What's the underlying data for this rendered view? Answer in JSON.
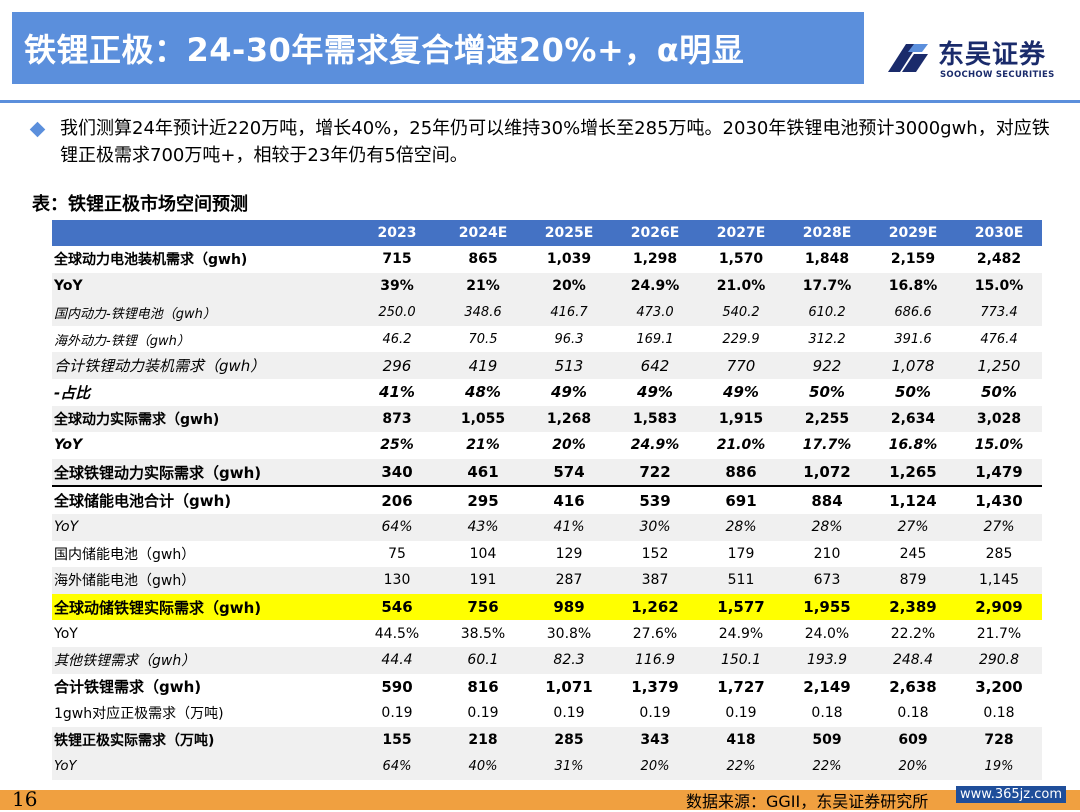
{
  "header": {
    "title": "铁锂正极：24-30年需求复合增速20%+，α明显",
    "logo_cn": "东吴证券",
    "logo_en": "SOOCHOW SECURITIES"
  },
  "bullet": {
    "text": "我们测算24年预计近220万吨，增长40%，25年仍可以维持30%增长至285万吨。2030年铁锂电池预计3000gwh，对应铁锂正极需求700万吨+，相较于23年仍有5倍空间。"
  },
  "table": {
    "caption": "表：铁锂正极市场空间预测",
    "headers": [
      "",
      "2023",
      "2024E",
      "2025E",
      "2026E",
      "2027E",
      "2028E",
      "2029E",
      "2030E"
    ],
    "rows": [
      {
        "label": "全球动力电池装机需求（gwh)",
        "values": [
          "715",
          "865",
          "1,039",
          "1,298",
          "1,570",
          "1,848",
          "2,159",
          "2,482"
        ]
      },
      {
        "label": "YoY",
        "values": [
          "39%",
          "21%",
          "20%",
          "24.9%",
          "21.0%",
          "17.7%",
          "16.8%",
          "15.0%"
        ]
      },
      {
        "label": "国内动力-铁锂电池（gwh）",
        "values": [
          "250.0",
          "348.6",
          "416.7",
          "473.0",
          "540.2",
          "610.2",
          "686.6",
          "773.4"
        ]
      },
      {
        "label": "海外动力-铁锂（gwh）",
        "values": [
          "46.2",
          "70.5",
          "96.3",
          "169.1",
          "229.9",
          "312.2",
          "391.6",
          "476.4"
        ]
      },
      {
        "label": "合计铁锂动力装机需求（gwh）",
        "values": [
          "296",
          "419",
          "513",
          "642",
          "770",
          "922",
          "1,078",
          "1,250"
        ]
      },
      {
        "label": "-占比",
        "values": [
          "41%",
          "48%",
          "49%",
          "49%",
          "49%",
          "50%",
          "50%",
          "50%"
        ]
      },
      {
        "label": "全球动力实际需求（gwh)",
        "values": [
          "873",
          "1,055",
          "1,268",
          "1,583",
          "1,915",
          "2,255",
          "2,634",
          "3,028"
        ]
      },
      {
        "label": "YoY",
        "values": [
          "25%",
          "21%",
          "20%",
          "24.9%",
          "21.0%",
          "17.7%",
          "16.8%",
          "15.0%"
        ]
      },
      {
        "label": "全球铁锂动力实际需求（gwh)",
        "values": [
          "340",
          "461",
          "574",
          "722",
          "886",
          "1,072",
          "1,265",
          "1,479"
        ]
      },
      {
        "label": "全球储能电池合计（gwh)",
        "values": [
          "206",
          "295",
          "416",
          "539",
          "691",
          "884",
          "1,124",
          "1,430"
        ]
      },
      {
        "label": "YoY",
        "values": [
          "64%",
          "43%",
          "41%",
          "30%",
          "28%",
          "28%",
          "27%",
          "27%"
        ]
      },
      {
        "label": "国内储能电池（gwh）",
        "values": [
          "75",
          "104",
          "129",
          "152",
          "179",
          "210",
          "245",
          "285"
        ]
      },
      {
        "label": "海外储能电池（gwh）",
        "values": [
          "130",
          "191",
          "287",
          "387",
          "511",
          "673",
          "879",
          "1,145"
        ]
      },
      {
        "label": "全球动储铁锂实际需求（gwh)",
        "values": [
          "546",
          "756",
          "989",
          "1,262",
          "1,577",
          "1,955",
          "2,389",
          "2,909"
        ]
      },
      {
        "label": "YoY",
        "values": [
          "44.5%",
          "38.5%",
          "30.8%",
          "27.6%",
          "24.9%",
          "24.0%",
          "22.2%",
          "21.7%"
        ]
      },
      {
        "label": "其他铁锂需求（gwh）",
        "values": [
          "44.4",
          "60.1",
          "82.3",
          "116.9",
          "150.1",
          "193.9",
          "248.4",
          "290.8"
        ]
      },
      {
        "label": "合计铁锂需求（gwh)",
        "values": [
          "590",
          "816",
          "1,071",
          "1,379",
          "1,727",
          "2,149",
          "2,638",
          "3,200"
        ]
      },
      {
        "label": "1gwh对应正极需求（万吨)",
        "values": [
          "0.19",
          "0.19",
          "0.19",
          "0.19",
          "0.19",
          "0.18",
          "0.18",
          "0.18"
        ]
      },
      {
        "label": "铁锂正极实际需求（万吨)",
        "values": [
          "155",
          "218",
          "285",
          "343",
          "418",
          "509",
          "609",
          "728"
        ]
      },
      {
        "label": "YoY",
        "values": [
          "64%",
          "40%",
          "31%",
          "20%",
          "22%",
          "22%",
          "20%",
          "19%"
        ]
      }
    ]
  },
  "footer": {
    "page_number": "16",
    "source": "数据来源：GGII，东吴证券研究所",
    "watermark": "www.365jz.com"
  },
  "colors": {
    "title_bar": "#5b8fdc",
    "table_header": "#4472c4",
    "highlight": "#ffff00",
    "footer_bar": "#f0a040",
    "logo": "#1a2b6b"
  }
}
